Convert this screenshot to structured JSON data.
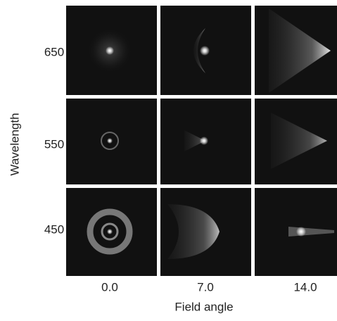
{
  "y_axis_label": "Wavelength",
  "x_axis_label": "Field angle",
  "rows": [
    "650",
    "550",
    "450"
  ],
  "columns": [
    "0.0",
    "7.0",
    "14.0"
  ]
}
